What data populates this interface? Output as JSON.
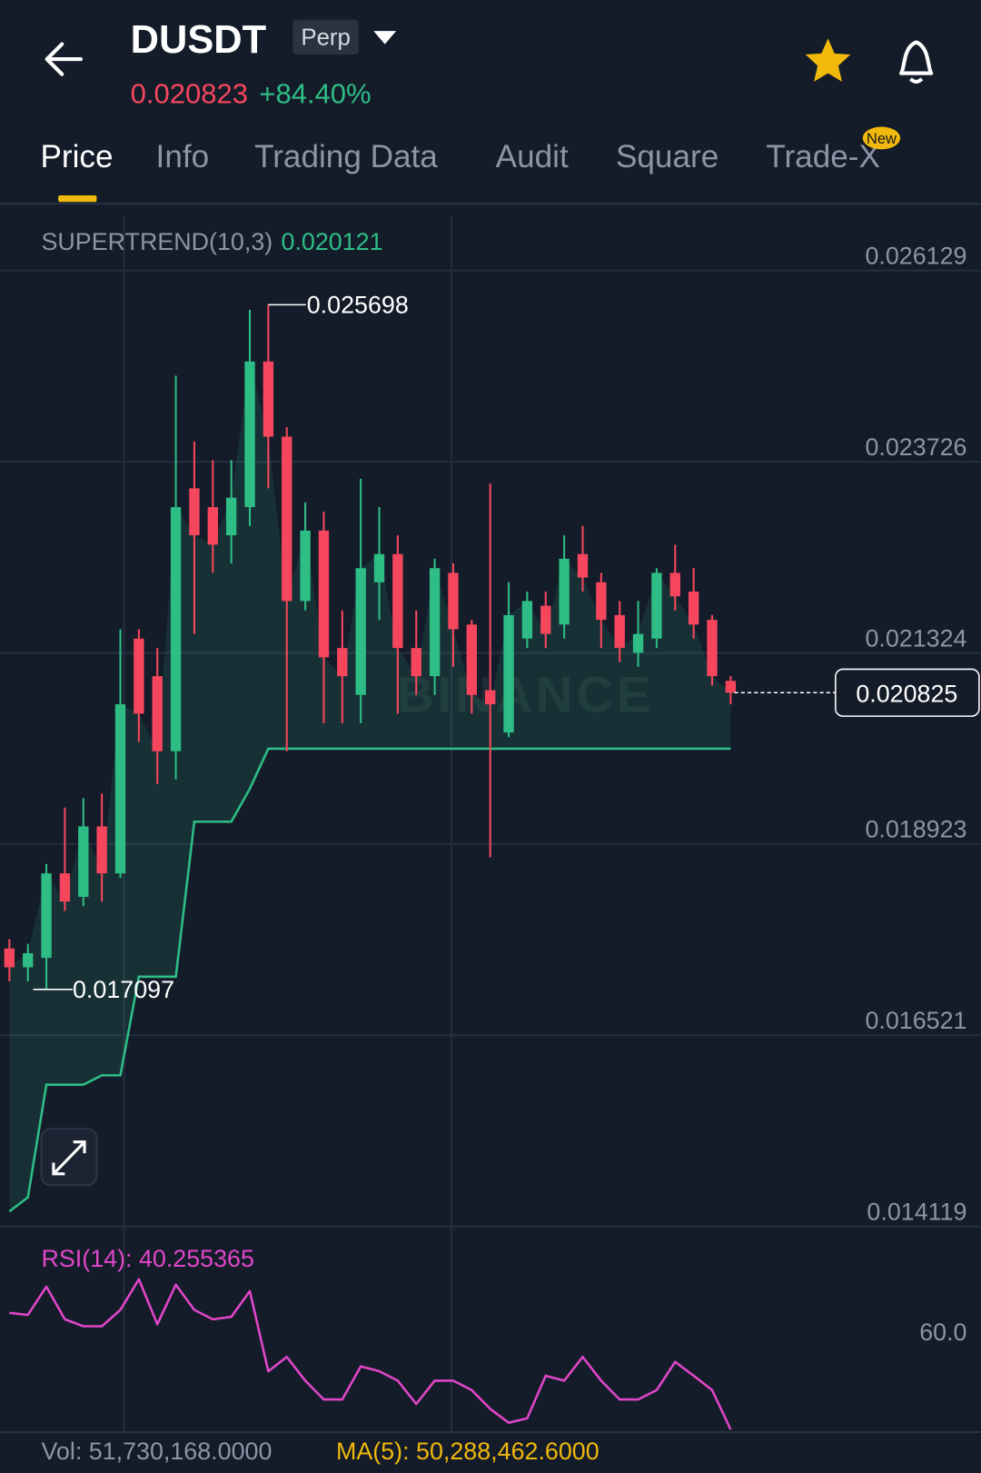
{
  "header": {
    "symbol": "DUSDT",
    "contract": "Perp",
    "price": "0.020823",
    "change": "+84.40%"
  },
  "tabs": [
    "Price",
    "Info",
    "Trading Data",
    "Audit",
    "Square",
    "Trade-X"
  ],
  "tab_badge": "New",
  "chart_data": [
    {
      "type": "candlestick",
      "indicator_label": "SUPERTREND(10,3)",
      "indicator_value": "0.020121",
      "watermark": "BINANCE",
      "max_label": "0.025698",
      "min_label": "0.017097",
      "last_label": "0.020825",
      "up_color": "#2ebd85",
      "down_color": "#f6465d",
      "ylim": [
        0.014119,
        0.026813
      ],
      "yticks": [
        0.026129,
        0.023726,
        0.021324,
        0.018923,
        0.016521,
        0.014119
      ],
      "grid": true,
      "open": [
        0.017611,
        0.017375,
        0.017493,
        0.018555,
        0.01826,
        0.019145,
        0.018555,
        0.021504,
        0.021032,
        0.020089,
        0.023392,
        0.023156,
        0.022802,
        0.023156,
        0.024985,
        0.024041,
        0.021976,
        0.022861,
        0.021386,
        0.020797,
        0.022212,
        0.022566,
        0.021386,
        0.021032,
        0.02233,
        0.021681,
        0.020855,
        0.020325,
        0.021504,
        0.021917,
        0.021681,
        0.022566,
        0.022212,
        0.021799,
        0.021327,
        0.021504,
        0.02233,
        0.022094,
        0.02174,
        0.020973
      ],
      "high": [
        0.017729,
        0.01767,
        0.018673,
        0.019381,
        0.019499,
        0.019558,
        0.021622,
        0.021622,
        0.021386,
        0.024808,
        0.023982,
        0.023746,
        0.023746,
        0.025634,
        0.025698,
        0.024159,
        0.023215,
        0.023097,
        0.021858,
        0.02351,
        0.023156,
        0.022802,
        0.021858,
        0.022507,
        0.022448,
        0.02174,
        0.023451,
        0.022212,
        0.022094,
        0.022094,
        0.022802,
        0.02292,
        0.02233,
        0.021976,
        0.021976,
        0.022389,
        0.022684,
        0.022389,
        0.021799,
        0.021032
      ],
      "low": [
        0.017198,
        0.017198,
        0.017097,
        0.018083,
        0.018142,
        0.018201,
        0.018496,
        0.020207,
        0.019676,
        0.019735,
        0.021563,
        0.02233,
        0.022448,
        0.02292,
        0.023392,
        0.020089,
        0.021858,
        0.020443,
        0.020443,
        0.020443,
        0.02174,
        0.020561,
        0.020797,
        0.020797,
        0.02115,
        0.020561,
        0.018756,
        0.020266,
        0.021386,
        0.021386,
        0.021504,
        0.022094,
        0.021386,
        0.021209,
        0.02115,
        0.021386,
        0.021858,
        0.021504,
        0.020915,
        0.020679
      ],
      "close": [
        0.017375,
        0.017552,
        0.018555,
        0.018201,
        0.019145,
        0.018555,
        0.020679,
        0.020561,
        0.020089,
        0.023156,
        0.022802,
        0.022684,
        0.023274,
        0.024985,
        0.024041,
        0.021976,
        0.022861,
        0.021268,
        0.021032,
        0.022389,
        0.022566,
        0.021386,
        0.021032,
        0.022389,
        0.021622,
        0.020797,
        0.020679,
        0.021799,
        0.021976,
        0.021563,
        0.022507,
        0.022271,
        0.02174,
        0.021386,
        0.021563,
        0.02233,
        0.022035,
        0.021681,
        0.021032,
        0.020825
      ],
      "series": [
        {
          "color": "#2ebd85",
          "values": [
            0.014308,
            0.014485,
            0.0159,
            0.0159,
            0.0159,
            0.016018,
            0.016018,
            0.017257,
            0.017257,
            0.017257,
            0.019204,
            0.019204,
            0.019204,
            0.019617,
            0.020121,
            0.020121,
            0.020121,
            0.020121,
            0.020121,
            0.020121,
            0.020121,
            0.020121,
            0.020121,
            0.020121,
            0.020121,
            0.020121,
            0.020121,
            0.020121,
            0.020121,
            0.020121,
            0.020121,
            0.020121,
            0.020121,
            0.020121,
            0.020121,
            0.020121,
            0.020121,
            0.020121,
            0.020121,
            0.020121
          ]
        }
      ]
    },
    {
      "type": "line",
      "title": "RSI(14): 40.255365",
      "color": "#e046c8",
      "ylim": [
        39.7,
        80.5
      ],
      "yticks": [
        {
          "value": 60,
          "label": "60.0"
        }
      ],
      "values": [
        63.8,
        63.4,
        69.1,
        62.5,
        61.1,
        61.1,
        64.4,
        70.6,
        61.5,
        69.5,
        64.4,
        62.5,
        63.0,
        68.2,
        52.0,
        54.9,
        50.1,
        46.3,
        46.3,
        53.0,
        52.0,
        50.1,
        45.4,
        50.1,
        50.1,
        48.2,
        44.4,
        41.6,
        42.5,
        51.1,
        50.1,
        54.9,
        50.1,
        46.3,
        46.3,
        48.2,
        53.9,
        51.1,
        48.2,
        40.255365
      ]
    }
  ],
  "footer": {
    "volume": "Vol: 51,730,168.0000",
    "ma": "MA(5): 50,288,462.6000"
  }
}
